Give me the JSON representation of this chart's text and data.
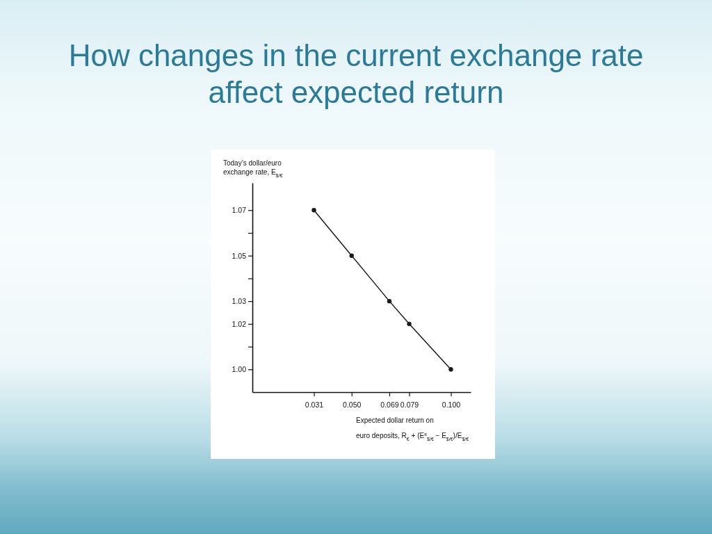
{
  "chart_data": {
    "type": "line",
    "title": "How changes in the current exchange rate affect expected return",
    "xlabel": "Expected dollar return on euro deposits, R$_{€}$ + (E$^{e}$$_{$/€}$ − E$_{$/€}$)/E$_{$/€}$",
    "ylabel": "Today’s dollar/euro exchange rate, E$_{$/€}$",
    "x": [
      0.031,
      0.05,
      0.069,
      0.079,
      0.1
    ],
    "series": [
      {
        "color": "#1a1a1a",
        "values": [
          1.07,
          1.05,
          1.03,
          1.02,
          1.0
        ]
      }
    ],
    "xlim": [
      0,
      0.11
    ],
    "xticks": [
      0.031,
      {
        "value": 0.05,
        "label": "0.050"
      },
      0.069,
      0.079,
      {
        "value": 0.1,
        "label": "0.100"
      }
    ],
    "ylim": [
      0.99,
      1.082
    ],
    "yticks": [
      {
        "value": 1.0,
        "label": "1.00"
      },
      {
        "value": 1.01,
        "label": null
      },
      1.02,
      1.03,
      {
        "value": 1.04,
        "label": null
      },
      1.05,
      {
        "value": 1.06,
        "label": null
      },
      1.07
    ],
    "marker": "circle",
    "line_style": "solid"
  }
}
